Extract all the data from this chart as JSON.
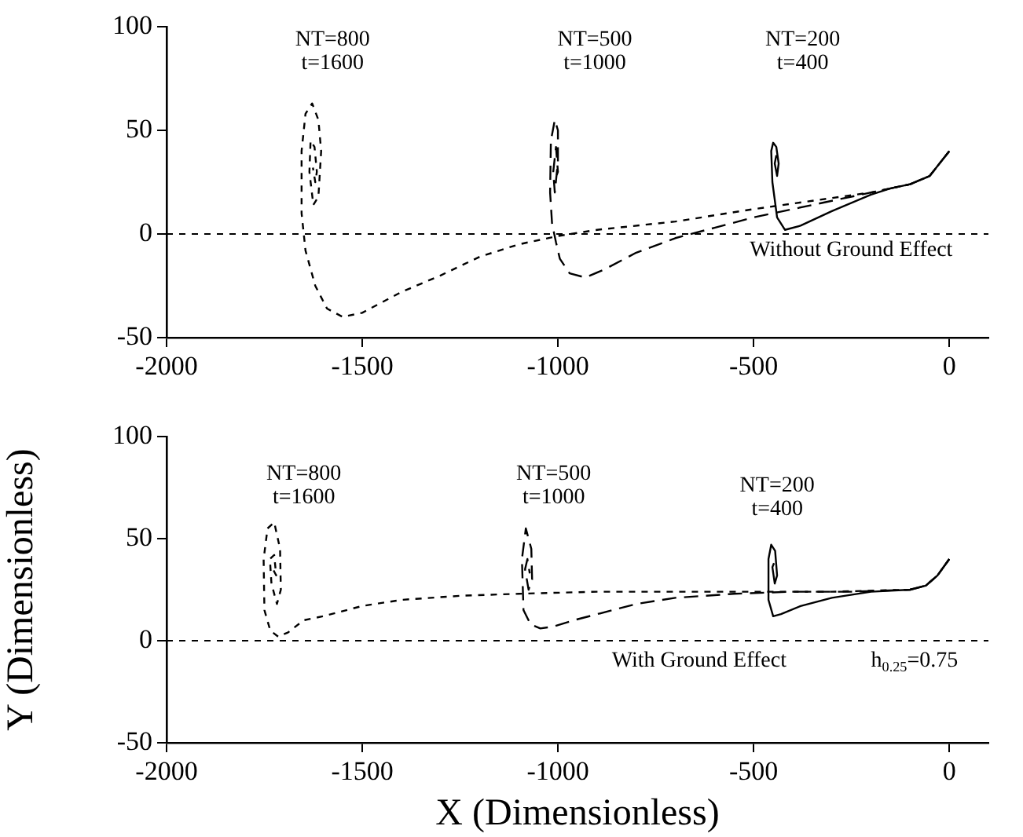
{
  "chart_data": [
    {
      "type": "line",
      "xlim": [
        -2000,
        100
      ],
      "ylim": [
        -50,
        100
      ],
      "xticks": [
        -2000,
        -1500,
        -1000,
        -500,
        0
      ],
      "yticks": [
        -50,
        0,
        50,
        100
      ],
      "grid": false,
      "legend": false,
      "marker": "none",
      "series": [
        {
          "color": "#000000",
          "line_style": "solid",
          "x": [
            0,
            -50,
            -100,
            -150,
            -200,
            -300,
            -380,
            -420,
            -440,
            -452,
            -455,
            -450,
            -442,
            -436,
            -440,
            -446,
            -442
          ],
          "values": [
            40,
            28,
            24,
            22,
            19,
            11,
            4,
            2,
            8,
            25,
            40,
            44,
            42,
            34,
            28,
            34,
            38
          ]
        },
        {
          "color": "#000000",
          "line_style": "dashed",
          "x": [
            0,
            -50,
            -100,
            -200,
            -350,
            -500,
            -600,
            -700,
            -800,
            -880,
            -930,
            -970,
            -995,
            -1005,
            -1015,
            -1020,
            -1018,
            -1008,
            -1000,
            -1000,
            -1008,
            -1012,
            -1005,
            -1000,
            -1004
          ],
          "values": [
            40,
            28,
            24,
            20,
            14,
            8,
            3,
            -2,
            -9,
            -17,
            -21,
            -19,
            -12,
            -4,
            5,
            20,
            45,
            55,
            50,
            35,
            20,
            30,
            42,
            30,
            28
          ]
        },
        {
          "color": "#000000",
          "line_style": "dotted",
          "x": [
            0,
            -50,
            -100,
            -200,
            -350,
            -500,
            -700,
            -900,
            -1000,
            -1100,
            -1200,
            -1300,
            -1400,
            -1450,
            -1500,
            -1550,
            -1590,
            -1620,
            -1645,
            -1655,
            -1655,
            -1645,
            -1628,
            -1612,
            -1605,
            -1612,
            -1625,
            -1635,
            -1632,
            -1622,
            -1616,
            -1620,
            -1626
          ],
          "values": [
            40,
            28,
            24,
            20,
            16,
            12,
            6,
            2,
            -1,
            -5,
            -11,
            -20,
            -28,
            -33,
            -38,
            -40,
            -36,
            -25,
            -8,
            10,
            40,
            58,
            63,
            55,
            40,
            18,
            14,
            30,
            45,
            42,
            30,
            25,
            32
          ]
        }
      ],
      "ref_lines": [
        {
          "axis": "y",
          "value": 0,
          "line_style": "dotted",
          "color": "#000000"
        }
      ],
      "annotations": [
        "NT=800\nt=1600",
        "NT=500\nt=1000",
        "NT=200\nt=400",
        "Without Ground Effect"
      ]
    },
    {
      "type": "line",
      "xlim": [
        -2000,
        100
      ],
      "ylim": [
        -50,
        100
      ],
      "xticks": [
        -2000,
        -1500,
        -1000,
        -500,
        0
      ],
      "yticks": [
        -50,
        0,
        50,
        100
      ],
      "grid": false,
      "legend": false,
      "marker": "none",
      "xlabel": "X (Dimensionless)",
      "ylabel": "Y (Dimensionless)",
      "series": [
        {
          "color": "#000000",
          "line_style": "solid",
          "x": [
            0,
            -30,
            -60,
            -100,
            -200,
            -300,
            -380,
            -430,
            -450,
            -462,
            -462,
            -455,
            -445,
            -440,
            -446,
            -452,
            -448
          ],
          "values": [
            40,
            32,
            27,
            25,
            24,
            21,
            17,
            13,
            12,
            20,
            40,
            47,
            44,
            32,
            28,
            36,
            38
          ]
        },
        {
          "color": "#000000",
          "line_style": "dashed",
          "x": [
            0,
            -30,
            -60,
            -100,
            -250,
            -400,
            -550,
            -700,
            -800,
            -900,
            -960,
            -1010,
            -1045,
            -1070,
            -1088,
            -1092,
            -1082,
            -1068,
            -1066,
            -1075,
            -1084,
            -1078,
            -1072
          ],
          "values": [
            40,
            32,
            27,
            25,
            24,
            24,
            23,
            21,
            18,
            13,
            10,
            7,
            6,
            8,
            15,
            40,
            55,
            45,
            30,
            25,
            35,
            40,
            33
          ]
        },
        {
          "color": "#000000",
          "line_style": "dotted",
          "x": [
            0,
            -30,
            -60,
            -100,
            -300,
            -600,
            -900,
            -1100,
            -1250,
            -1400,
            -1500,
            -1600,
            -1650,
            -1690,
            -1715,
            -1735,
            -1750,
            -1752,
            -1742,
            -1725,
            -1710,
            -1708,
            -1718,
            -1732,
            -1736,
            -1725,
            -1720,
            -1728
          ],
          "values": [
            40,
            32,
            27,
            25,
            24,
            24,
            24,
            23,
            22,
            20,
            17,
            12,
            10,
            4,
            2,
            5,
            15,
            40,
            55,
            58,
            45,
            25,
            18,
            28,
            40,
            42,
            32,
            35
          ]
        }
      ],
      "ref_lines": [
        {
          "axis": "y",
          "value": 0,
          "line_style": "dotted",
          "color": "#000000"
        }
      ],
      "annotations": [
        "NT=800\nt=1600",
        "NT=500\nt=1000",
        "NT=200\nt=400",
        "With Ground Effect",
        "h$_{0.25}$=0.75"
      ]
    }
  ]
}
